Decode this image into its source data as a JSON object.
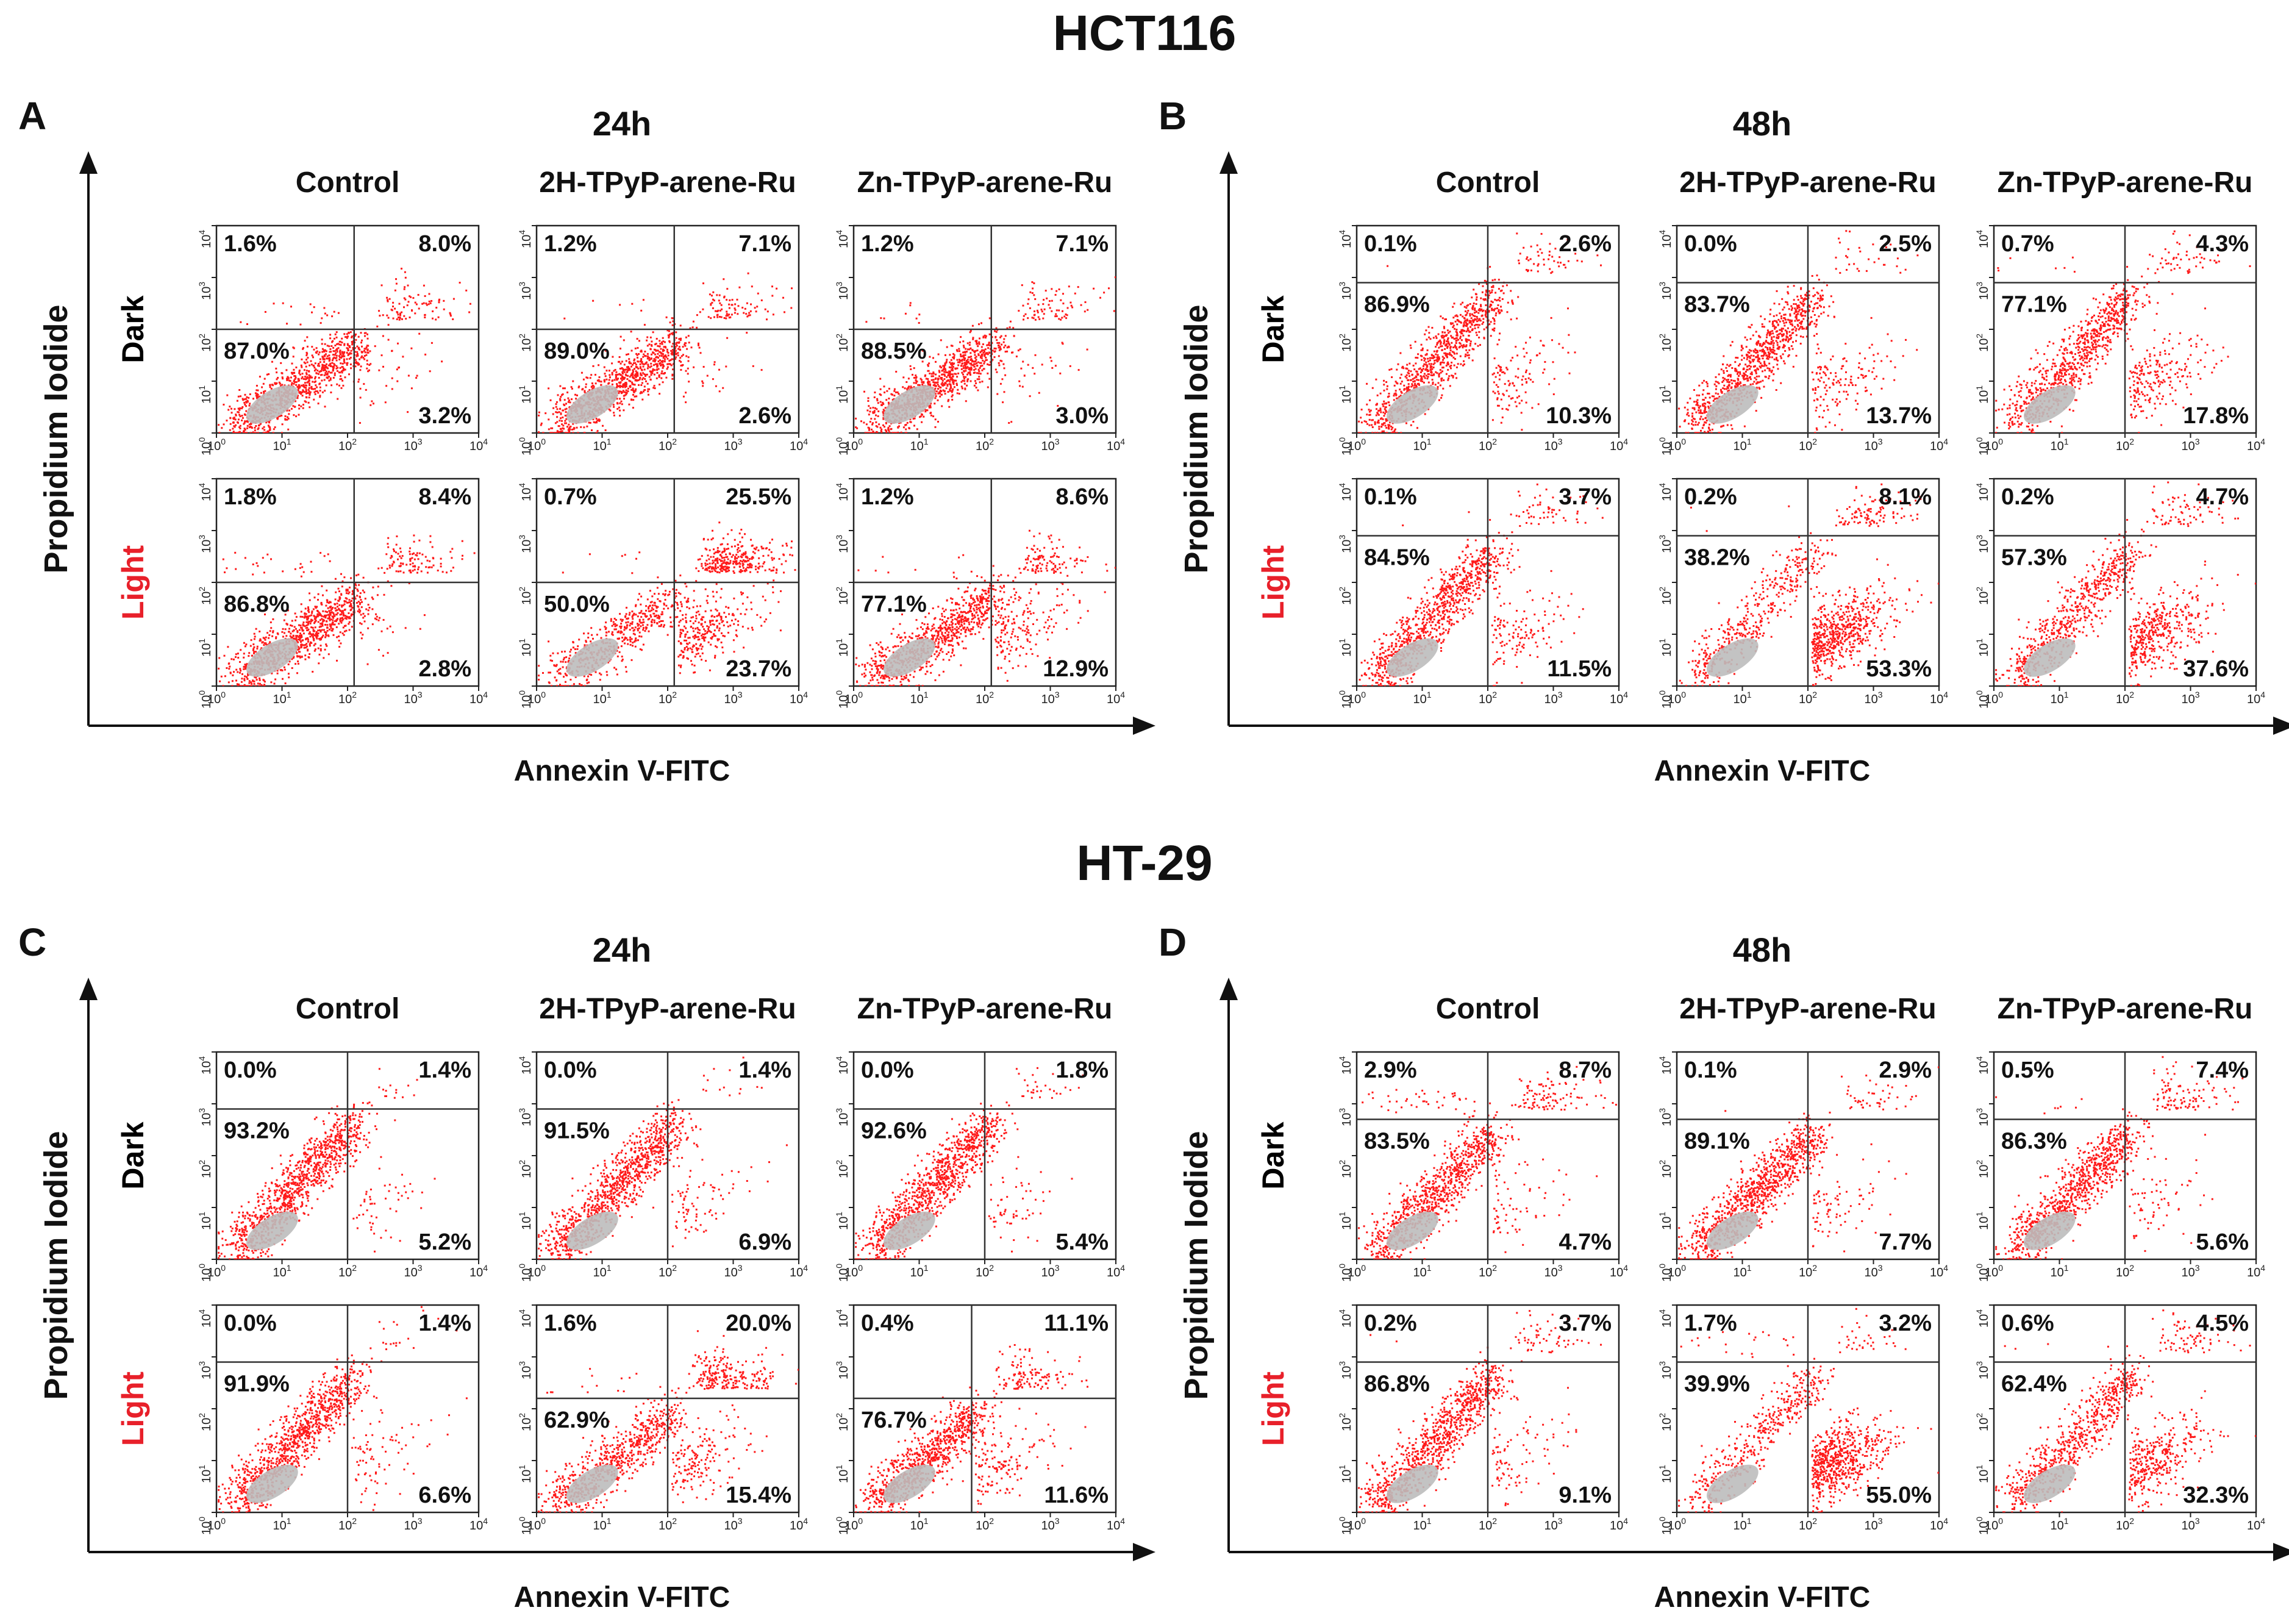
{
  "figure": {
    "cell_lines": [
      "HCT116",
      "HT-29"
    ],
    "axis_x_label": "Annexin V-FITC",
    "axis_y_label": "Propidium Iodide",
    "row_labels": [
      "Dark",
      "Light"
    ],
    "row_label_colors": [
      "#000000",
      "#e8202a"
    ],
    "column_labels": [
      "Control",
      "2H-TPyP-arene-Ru",
      "Zn-TPyP-arene-Ru"
    ],
    "tick_labels": [
      "10",
      "10",
      "10",
      "10",
      "10"
    ],
    "tick_exponents": [
      "0",
      "1",
      "2",
      "3",
      "4"
    ],
    "dot_color": "#ff1a1a",
    "density_color": "#bdbdbd"
  },
  "chart_data": [
    {
      "type": "scatter",
      "panel": "A",
      "cell_line": "HCT116",
      "time": "24h",
      "xlabel": "Annexin V-FITC",
      "ylabel": "Propidium Iodide",
      "xscale": "log",
      "yscale": "log",
      "xlim": [
        1,
        10000
      ],
      "ylim": [
        1,
        10000
      ],
      "plots": [
        {
          "row": "Dark",
          "column": "Control",
          "gate": [
            2.1,
            2.0
          ],
          "quadrants": {
            "ul": "1.6%",
            "ur": "8.0%",
            "ll": "87.0%",
            "lr": "3.2%"
          }
        },
        {
          "row": "Dark",
          "column": "2H-TPyP-arene-Ru",
          "gate": [
            2.1,
            2.0
          ],
          "quadrants": {
            "ul": "1.2%",
            "ur": "7.1%",
            "ll": "89.0%",
            "lr": "2.6%"
          }
        },
        {
          "row": "Dark",
          "column": "Zn-TPyP-arene-Ru",
          "gate": [
            2.1,
            2.0
          ],
          "quadrants": {
            "ul": "1.2%",
            "ur": "7.1%",
            "ll": "88.5%",
            "lr": "3.0%"
          }
        },
        {
          "row": "Light",
          "column": "Control",
          "gate": [
            2.1,
            2.0
          ],
          "quadrants": {
            "ul": "1.8%",
            "ur": "8.4%",
            "ll": "86.8%",
            "lr": "2.8%"
          }
        },
        {
          "row": "Light",
          "column": "2H-TPyP-arene-Ru",
          "gate": [
            2.1,
            2.0
          ],
          "quadrants": {
            "ul": "0.7%",
            "ur": "25.5%",
            "ll": "50.0%",
            "lr": "23.7%"
          }
        },
        {
          "row": "Light",
          "column": "Zn-TPyP-arene-Ru",
          "gate": [
            2.1,
            2.0
          ],
          "quadrants": {
            "ul": "1.2%",
            "ur": "8.6%",
            "ll": "77.1%",
            "lr": "12.9%"
          }
        }
      ]
    },
    {
      "type": "scatter",
      "panel": "B",
      "cell_line": "HCT116",
      "time": "48h",
      "xlabel": "Annexin V-FITC",
      "ylabel": "Propidium Iodide",
      "xscale": "log",
      "yscale": "log",
      "xlim": [
        1,
        10000
      ],
      "ylim": [
        1,
        10000
      ],
      "plots": [
        {
          "row": "Dark",
          "column": "Control",
          "gate": [
            2.0,
            2.9
          ],
          "quadrants": {
            "ul": "0.1%",
            "ur": "2.6%",
            "ll": "86.9%",
            "lr": "10.3%"
          }
        },
        {
          "row": "Dark",
          "column": "2H-TPyP-arene-Ru",
          "gate": [
            2.0,
            2.9
          ],
          "quadrants": {
            "ul": "0.0%",
            "ur": "2.5%",
            "ll": "83.7%",
            "lr": "13.7%"
          }
        },
        {
          "row": "Dark",
          "column": "Zn-TPyP-arene-Ru",
          "gate": [
            2.0,
            2.9
          ],
          "quadrants": {
            "ul": "0.7%",
            "ur": "4.3%",
            "ll": "77.1%",
            "lr": "17.8%"
          }
        },
        {
          "row": "Light",
          "column": "Control",
          "gate": [
            2.0,
            2.9
          ],
          "quadrants": {
            "ul": "0.1%",
            "ur": "3.7%",
            "ll": "84.5%",
            "lr": "11.5%"
          }
        },
        {
          "row": "Light",
          "column": "2H-TPyP-arene-Ru",
          "gate": [
            2.0,
            2.9
          ],
          "quadrants": {
            "ul": "0.2%",
            "ur": "8.1%",
            "ll": "38.2%",
            "lr": "53.3%"
          }
        },
        {
          "row": "Light",
          "column": "Zn-TPyP-arene-Ru",
          "gate": [
            2.0,
            2.9
          ],
          "quadrants": {
            "ul": "0.2%",
            "ur": "4.7%",
            "ll": "57.3%",
            "lr": "37.6%"
          }
        }
      ]
    },
    {
      "type": "scatter",
      "panel": "C",
      "cell_line": "HT-29",
      "time": "24h",
      "xlabel": "Annexin V-FITC",
      "ylabel": "Propidium Iodide",
      "xscale": "log",
      "yscale": "log",
      "xlim": [
        1,
        10000
      ],
      "ylim": [
        1,
        10000
      ],
      "plots": [
        {
          "row": "Dark",
          "column": "Control",
          "gate": [
            2.0,
            2.9
          ],
          "quadrants": {
            "ul": "0.0%",
            "ur": "1.4%",
            "ll": "93.2%",
            "lr": "5.2%"
          }
        },
        {
          "row": "Dark",
          "column": "2H-TPyP-arene-Ru",
          "gate": [
            2.0,
            2.9
          ],
          "quadrants": {
            "ul": "0.0%",
            "ur": "1.4%",
            "ll": "91.5%",
            "lr": "6.9%"
          }
        },
        {
          "row": "Dark",
          "column": "Zn-TPyP-arene-Ru",
          "gate": [
            2.0,
            2.9
          ],
          "quadrants": {
            "ul": "0.0%",
            "ur": "1.8%",
            "ll": "92.6%",
            "lr": "5.4%"
          }
        },
        {
          "row": "Light",
          "column": "Control",
          "gate": [
            2.0,
            2.9
          ],
          "quadrants": {
            "ul": "0.0%",
            "ur": "1.4%",
            "ll": "91.9%",
            "lr": "6.6%"
          }
        },
        {
          "row": "Light",
          "column": "2H-TPyP-arene-Ru",
          "gate": [
            2.0,
            2.2
          ],
          "quadrants": {
            "ul": "1.6%",
            "ur": "20.0%",
            "ll": "62.9%",
            "lr": "15.4%"
          }
        },
        {
          "row": "Light",
          "column": "Zn-TPyP-arene-Ru",
          "gate": [
            1.8,
            2.2
          ],
          "quadrants": {
            "ul": "0.4%",
            "ur": "11.1%",
            "ll": "76.7%",
            "lr": "11.6%"
          }
        }
      ]
    },
    {
      "type": "scatter",
      "panel": "D",
      "cell_line": "HT-29",
      "time": "48h",
      "xlabel": "Annexin V-FITC",
      "ylabel": "Propidium Iodide",
      "xscale": "log",
      "yscale": "log",
      "xlim": [
        1,
        10000
      ],
      "ylim": [
        1,
        10000
      ],
      "plots": [
        {
          "row": "Dark",
          "column": "Control",
          "gate": [
            2.0,
            2.7
          ],
          "quadrants": {
            "ul": "2.9%",
            "ur": "8.7%",
            "ll": "83.5%",
            "lr": "4.7%"
          }
        },
        {
          "row": "Dark",
          "column": "2H-TPyP-arene-Ru",
          "gate": [
            2.0,
            2.7
          ],
          "quadrants": {
            "ul": "0.1%",
            "ur": "2.9%",
            "ll": "89.1%",
            "lr": "7.7%"
          }
        },
        {
          "row": "Dark",
          "column": "Zn-TPyP-arene-Ru",
          "gate": [
            2.0,
            2.7
          ],
          "quadrants": {
            "ul": "0.5%",
            "ur": "7.4%",
            "ll": "86.3%",
            "lr": "5.6%"
          }
        },
        {
          "row": "Light",
          "column": "Control",
          "gate": [
            2.0,
            2.9
          ],
          "quadrants": {
            "ul": "0.2%",
            "ur": "3.7%",
            "ll": "86.8%",
            "lr": "9.1%"
          }
        },
        {
          "row": "Light",
          "column": "2H-TPyP-arene-Ru",
          "gate": [
            2.0,
            2.9
          ],
          "quadrants": {
            "ul": "1.7%",
            "ur": "3.2%",
            "ll": "39.9%",
            "lr": "55.0%"
          }
        },
        {
          "row": "Light",
          "column": "Zn-TPyP-arene-Ru",
          "gate": [
            2.0,
            2.9
          ],
          "quadrants": {
            "ul": "0.6%",
            "ur": "4.5%",
            "ll": "62.4%",
            "lr": "32.3%"
          }
        }
      ]
    }
  ]
}
